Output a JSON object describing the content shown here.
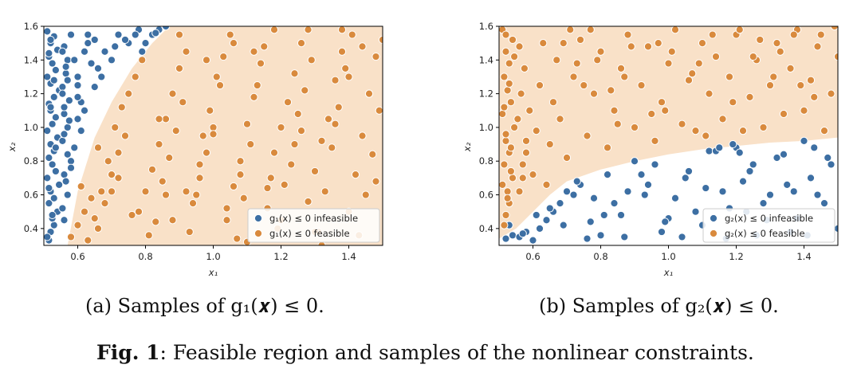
{
  "figure_caption": {
    "label": "Fig. 1",
    "text": ": Feasible region and samples of the nonlinear constraints."
  },
  "colors": {
    "infeasible": "#3d6fa3",
    "feasible": "#d98a3d",
    "feasible_region": "#f9e1c8"
  },
  "chart_data": [
    {
      "type": "scatter",
      "id": "a",
      "caption": "(a) Samples of g₁(𝒙) ≤ 0.",
      "xlabel": "x₁",
      "ylabel": "x₂",
      "xlim": [
        0.5,
        1.5
      ],
      "ylim": [
        0.3,
        1.6
      ],
      "xticks": [
        "0.6",
        "0.8",
        "1.0",
        "1.2",
        "1.4"
      ],
      "yticks": [
        "0.4",
        "0.6",
        "0.8",
        "1.0",
        "1.2",
        "1.4",
        "1.6"
      ],
      "grid": false,
      "legend_position": "bottom-right",
      "feasible_region_boundary": [
        [
          0.57,
          0.3
        ],
        [
          0.6,
          0.62
        ],
        [
          0.65,
          0.94
        ],
        [
          0.7,
          1.15
        ],
        [
          0.76,
          1.35
        ],
        [
          0.82,
          1.5
        ],
        [
          0.87,
          1.6
        ]
      ],
      "series": [
        {
          "name": "g₁(x) ≤ 0 infeasible",
          "color": "#3d6fa3",
          "x": [
            0.515,
            0.52,
            0.53,
            0.525,
            0.54,
            0.515,
            0.53,
            0.52,
            0.545,
            0.51,
            0.535,
            0.525,
            0.515,
            0.53,
            0.52,
            0.54,
            0.51,
            0.525,
            0.535,
            0.52,
            0.515,
            0.53,
            0.545,
            0.52,
            0.51,
            0.535,
            0.525,
            0.515,
            0.54,
            0.52,
            0.53,
            0.51,
            0.525,
            0.515,
            0.535,
            0.52,
            0.53,
            0.515,
            0.52,
            0.51,
            0.56,
            0.57,
            0.56,
            0.58,
            0.555,
            0.57,
            0.56,
            0.575,
            0.555,
            0.565,
            0.57,
            0.56,
            0.58,
            0.555,
            0.565,
            0.57,
            0.56,
            0.575,
            0.555,
            0.565,
            0.58,
            0.56,
            0.57,
            0.555,
            0.59,
            0.6,
            0.61,
            0.6,
            0.62,
            0.61,
            0.63,
            0.6,
            0.59,
            0.62,
            0.65,
            0.66,
            0.68,
            0.65,
            0.67,
            0.7,
            0.72,
            0.75,
            0.78,
            0.8,
            0.82,
            0.84,
            0.86,
            0.83,
            0.79,
            0.74,
            0.77,
            0.71,
            0.6,
            0.63,
            0.64
          ],
          "y": [
            0.33,
            0.38,
            0.42,
            0.46,
            0.5,
            0.55,
            0.58,
            0.62,
            0.66,
            0.7,
            0.74,
            0.78,
            0.82,
            0.86,
            0.9,
            0.94,
            0.98,
            1.02,
            1.06,
            1.1,
            1.14,
            1.18,
            1.22,
            1.26,
            1.3,
            1.34,
            1.38,
            1.42,
            1.46,
            1.5,
            1.54,
            1.57,
            0.48,
            0.64,
            0.88,
            1.12,
            1.28,
            1.44,
            1.52,
            0.35,
            0.45,
            0.6,
            0.72,
            0.8,
            0.92,
            1.0,
            1.08,
            1.16,
            1.24,
            1.32,
            1.4,
            1.48,
            1.55,
            0.52,
            0.68,
            0.84,
            0.96,
            1.04,
            1.2,
            1.36,
            0.76,
            1.12,
            1.28,
            1.45,
            0.88,
            1.05,
            1.15,
            1.3,
            1.45,
            0.98,
            1.55,
            1.25,
            1.4,
            1.1,
            1.24,
            1.35,
            1.45,
            1.52,
            1.3,
            1.4,
            1.55,
            1.5,
            1.58,
            1.5,
            1.55,
            1.58,
            1.6,
            1.56,
            1.45,
            1.52,
            1.55,
            1.48,
            1.18,
            1.5,
            1.38
          ],
          "marker": "circle"
        },
        {
          "name": "g₁(x) ≤ 0 feasible",
          "color": "#d98a3d",
          "x": [
            0.58,
            0.6,
            0.62,
            0.64,
            0.61,
            0.66,
            0.68,
            0.7,
            0.72,
            0.74,
            0.63,
            0.65,
            0.67,
            0.69,
            0.71,
            0.73,
            0.75,
            0.77,
            0.79,
            0.78,
            0.8,
            0.82,
            0.84,
            0.86,
            0.88,
            0.9,
            0.81,
            0.83,
            0.85,
            0.87,
            0.89,
            0.91,
            0.92,
            0.94,
            0.96,
            0.98,
            1.0,
            1.02,
            0.93,
            0.95,
            0.97,
            0.99,
            1.01,
            1.03,
            1.05,
            1.04,
            1.06,
            1.08,
            1.1,
            1.12,
            1.14,
            1.07,
            1.09,
            1.11,
            1.13,
            1.15,
            1.17,
            1.16,
            1.18,
            1.2,
            1.22,
            1.24,
            1.26,
            1.19,
            1.21,
            1.23,
            1.25,
            1.27,
            1.29,
            1.28,
            1.3,
            1.32,
            1.34,
            1.36,
            1.38,
            1.31,
            1.33,
            1.35,
            1.37,
            1.39,
            1.41,
            1.4,
            1.42,
            1.44,
            1.46,
            1.48,
            1.43,
            1.45,
            1.47,
            1.49,
            0.88,
            0.92,
            0.96,
            1.0,
            1.04,
            1.08,
            1.12,
            1.16,
            1.2,
            1.24,
            1.28,
            1.32,
            1.36,
            1.4,
            1.44,
            1.48,
            0.7,
            0.76,
            0.84,
            0.98,
            1.18,
            1.38,
            0.66,
            0.72,
            0.86,
            1.06,
            1.26,
            1.46,
            0.9,
            1.1,
            1.3,
            1.5
          ],
          "y": [
            0.35,
            0.42,
            0.5,
            0.58,
            0.65,
            0.4,
            0.55,
            0.72,
            0.85,
            0.95,
            0.33,
            0.46,
            0.62,
            0.8,
            1.0,
            1.12,
            1.2,
            1.3,
            1.4,
            0.5,
            0.62,
            0.75,
            0.9,
            1.05,
            1.2,
            1.35,
            0.36,
            0.44,
            0.68,
            0.82,
            0.98,
            1.15,
            1.45,
            0.55,
            0.7,
            0.85,
            1.0,
            1.25,
            0.38,
            0.6,
            0.95,
            1.1,
            1.3,
            1.42,
            1.55,
            0.45,
            0.65,
            0.8,
            1.02,
            1.18,
            1.38,
            0.34,
            0.58,
            0.9,
            1.25,
            1.48,
            0.7,
            0.52,
            0.85,
            1.0,
            1.15,
            1.32,
            1.5,
            0.4,
            0.66,
            0.78,
            1.08,
            1.22,
            1.4,
            0.56,
            0.74,
            0.92,
            1.05,
            1.28,
            1.45,
            0.38,
            0.62,
            0.88,
            1.12,
            1.35,
            1.55,
            0.5,
            0.72,
            0.95,
            1.2,
            1.42,
            0.36,
            0.6,
            0.84,
            1.1,
            0.45,
            0.62,
            0.78,
            0.96,
            0.52,
            0.72,
            1.45,
            0.64,
            0.45,
            0.9,
            1.58,
            0.3,
            1.02,
            1.3,
            1.48,
            0.68,
            0.62,
            0.48,
            1.05,
            1.4,
            1.58,
            1.58,
            0.88,
            0.7,
            0.6,
            1.5,
            0.98,
            1.2,
            1.55,
            0.32,
            0.38,
            1.52
          ],
          "marker": "circle"
        }
      ]
    },
    {
      "type": "scatter",
      "id": "b",
      "caption": "(b) Samples of g₂(𝒙) ≤ 0.",
      "xlabel": "x₁",
      "ylabel": "x₂",
      "xlim": [
        0.5,
        1.5
      ],
      "ylim": [
        0.3,
        1.6
      ],
      "xticks": [
        "0.6",
        "0.8",
        "1.0",
        "1.2",
        "1.4"
      ],
      "yticks": [
        "0.4",
        "0.6",
        "0.8",
        "1.0",
        "1.2",
        "1.4",
        "1.6"
      ],
      "grid": false,
      "legend_position": "bottom-right",
      "feasible_region_boundary": [
        [
          0.5,
          0.34
        ],
        [
          0.55,
          0.4
        ],
        [
          0.6,
          0.5
        ],
        [
          0.65,
          0.6
        ],
        [
          0.7,
          0.68
        ],
        [
          0.8,
          0.75
        ],
        [
          0.9,
          0.8
        ],
        [
          1.0,
          0.84
        ],
        [
          1.1,
          0.87
        ],
        [
          1.2,
          0.89
        ],
        [
          1.3,
          0.91
        ],
        [
          1.4,
          0.92
        ],
        [
          1.5,
          0.94
        ]
      ],
      "series": [
        {
          "name": "g₂(x) ≤ 0 infeasible",
          "color": "#3d6fa3",
          "x": [
            0.52,
            0.54,
            0.56,
            0.58,
            0.6,
            0.62,
            0.64,
            0.66,
            0.68,
            0.7,
            0.72,
            0.74,
            0.53,
            0.57,
            0.61,
            0.65,
            0.69,
            0.73,
            0.77,
            0.8,
            0.84,
            0.88,
            0.92,
            0.96,
            1.0,
            1.04,
            1.08,
            1.12,
            1.16,
            1.2,
            1.24,
            1.28,
            1.32,
            1.36,
            1.4,
            1.44,
            1.48,
            0.78,
            0.82,
            0.86,
            0.9,
            0.94,
            0.98,
            1.02,
            1.06,
            1.1,
            1.14,
            1.18,
            1.22,
            1.26,
            1.3,
            1.34,
            1.38,
            1.42,
            1.46,
            1.5,
            0.76,
            0.81,
            0.87,
            0.93,
            0.99,
            1.05,
            1.11,
            1.17,
            1.23,
            1.29,
            1.35,
            1.41,
            1.47,
            1.15,
            1.19,
            1.21,
            1.25,
            1.37,
            1.43
          ],
          "y": [
            0.34,
            0.36,
            0.35,
            0.38,
            0.33,
            0.4,
            0.45,
            0.5,
            0.55,
            0.62,
            0.6,
            0.66,
            0.42,
            0.37,
            0.48,
            0.52,
            0.42,
            0.68,
            0.44,
            0.36,
            0.55,
            0.62,
            0.72,
            0.78,
            0.46,
            0.35,
            0.5,
            0.86,
            0.62,
            0.88,
            0.74,
            0.55,
            0.82,
            0.38,
            0.92,
            0.6,
            0.78,
            0.58,
            0.72,
            0.48,
            0.8,
            0.66,
            0.38,
            0.58,
            0.74,
            0.42,
            0.86,
            0.52,
            0.68,
            0.36,
            0.6,
            0.84,
            0.46,
            0.7,
            0.55,
            0.4,
            0.34,
            0.48,
            0.35,
            0.6,
            0.44,
            0.7,
            0.64,
            0.34,
            0.5,
            0.45,
            0.66,
            0.36,
            0.82,
            0.88,
            0.9,
            0.85,
            0.78,
            0.62,
            0.88
          ],
          "marker": "circle"
        },
        {
          "name": "g₂(x) ≤ 0 feasible",
          "color": "#d98a3d",
          "x": [
            0.515,
            0.52,
            0.53,
            0.525,
            0.54,
            0.515,
            0.53,
            0.52,
            0.545,
            0.51,
            0.535,
            0.525,
            0.515,
            0.53,
            0.52,
            0.54,
            0.51,
            0.525,
            0.535,
            0.52,
            0.515,
            0.53,
            0.545,
            0.52,
            0.51,
            0.535,
            0.56,
            0.57,
            0.58,
            0.555,
            0.565,
            0.575,
            0.56,
            0.57,
            0.58,
            0.59,
            0.6,
            0.61,
            0.62,
            0.63,
            0.64,
            0.65,
            0.66,
            0.67,
            0.68,
            0.7,
            0.72,
            0.74,
            0.76,
            0.78,
            0.8,
            0.82,
            0.84,
            0.86,
            0.88,
            0.9,
            0.92,
            0.94,
            0.96,
            0.98,
            1.0,
            1.02,
            1.04,
            1.06,
            1.08,
            1.1,
            1.12,
            1.14,
            1.16,
            1.18,
            1.2,
            1.22,
            1.24,
            1.26,
            1.28,
            1.3,
            1.32,
            1.34,
            1.36,
            1.38,
            1.4,
            1.42,
            1.44,
            1.46,
            1.48,
            1.5,
            0.69,
            0.73,
            0.77,
            0.83,
            0.89,
            0.95,
            1.01,
            1.07,
            1.13,
            1.19,
            1.25,
            1.31,
            1.37,
            1.43,
            1.49,
            0.71,
            0.79,
            0.87,
            0.97,
            1.09,
            1.21,
            1.33,
            1.45,
            0.75,
            0.85,
            0.99,
            1.11,
            1.27,
            1.39
          ],
          "y": [
            0.42,
            0.48,
            0.55,
            0.62,
            0.7,
            0.78,
            0.85,
            0.92,
            1.0,
            1.08,
            1.15,
            1.22,
            1.3,
            1.38,
            1.45,
            1.52,
            1.58,
            0.58,
            0.74,
            0.96,
            1.12,
            1.26,
            1.42,
            1.55,
            0.66,
            0.88,
            0.62,
            0.78,
            0.92,
            1.05,
            1.2,
            1.35,
            1.48,
            0.7,
            0.85,
            1.1,
            0.72,
            0.98,
            1.25,
            1.5,
            0.66,
            0.9,
            1.15,
            1.4,
            1.05,
            0.82,
            1.3,
            1.52,
            0.95,
            1.2,
            1.45,
            0.88,
            1.1,
            1.35,
            1.55,
            1.0,
            1.25,
            1.48,
            0.92,
            1.15,
            1.38,
            1.58,
            1.02,
            1.28,
            0.98,
            1.5,
            1.2,
            1.42,
            1.05,
            1.3,
            1.55,
            0.98,
            1.18,
            1.4,
            1.0,
            1.25,
            1.5,
            1.08,
            1.35,
            1.58,
            1.1,
            1.28,
            1.48,
            0.98,
            1.2,
            1.42,
            1.5,
            1.38,
            1.58,
            1.22,
            1.48,
            1.08,
            1.45,
            1.32,
            1.55,
            1.15,
            1.42,
            1.3,
            1.55,
            1.18,
            1.6,
            1.58,
            1.4,
            1.3,
            1.5,
            1.38,
            1.58,
            1.45,
            1.55,
            1.25,
            1.02,
            1.1,
            0.95,
            1.52,
            1.25
          ],
          "marker": "circle"
        }
      ]
    }
  ]
}
